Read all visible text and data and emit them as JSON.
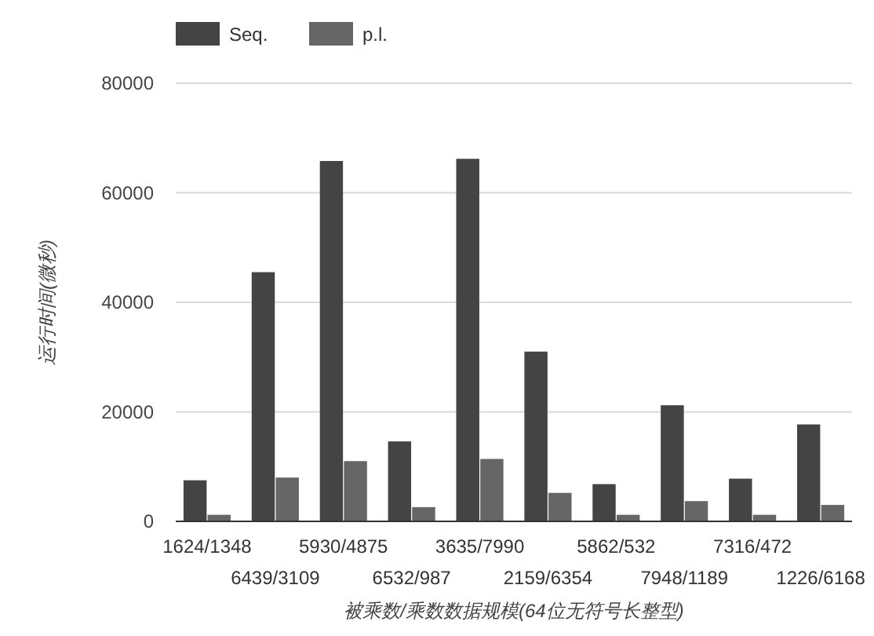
{
  "chart_data": {
    "type": "bar",
    "xlabel": "被乘数/乘数数据规模(64位无符号长整型)",
    "ylabel": "运行时间(微秒)",
    "categories": [
      "1624/1348",
      "6439/3109",
      "5930/4875",
      "6532/987",
      "3635/7990",
      "2159/6354",
      "5862/532",
      "7948/1189",
      "7316/472",
      "1226/6168"
    ],
    "series": [
      {
        "name": "Seq.",
        "color": "#444444",
        "values": [
          7500,
          45500,
          65800,
          14600,
          66200,
          31000,
          6800,
          21200,
          7800,
          17700
        ]
      },
      {
        "name": "p.l.",
        "color": "#666666",
        "values": [
          1200,
          8000,
          11000,
          2600,
          11400,
          5200,
          1200,
          3700,
          1200,
          3000
        ]
      }
    ],
    "ylim": [
      0,
      80000
    ],
    "yticks": [
      0,
      20000,
      40000,
      60000,
      80000
    ],
    "grid": "y",
    "legend": "top left"
  }
}
